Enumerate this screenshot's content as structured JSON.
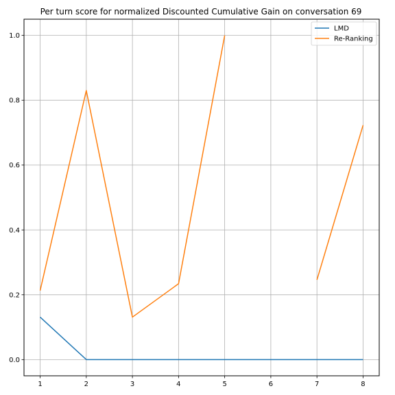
{
  "chart_data": {
    "type": "line",
    "title": "Per turn score for normalized Discounted Cumulative Gain on conversation 69",
    "xlabel": "",
    "ylabel": "",
    "x": [
      1,
      2,
      3,
      4,
      5,
      6,
      7,
      8
    ],
    "xlim": [
      0.65,
      8.35
    ],
    "ylim": [
      -0.05,
      1.05
    ],
    "xticks": [
      1,
      2,
      3,
      4,
      5,
      6,
      7,
      8
    ],
    "yticks": [
      0.0,
      0.2,
      0.4,
      0.6,
      0.8,
      1.0
    ],
    "grid": true,
    "legend_position": "top-right",
    "series": [
      {
        "name": "LMD",
        "color": "#1f77b4",
        "values": [
          0.131,
          0.0,
          0.0,
          0.0,
          0.0,
          0.0,
          0.0,
          0.0
        ]
      },
      {
        "name": "Re-Ranking",
        "color": "#ff7f0e",
        "values": [
          0.213,
          0.83,
          0.131,
          0.234,
          1.0,
          null,
          0.246,
          0.723
        ]
      }
    ]
  }
}
